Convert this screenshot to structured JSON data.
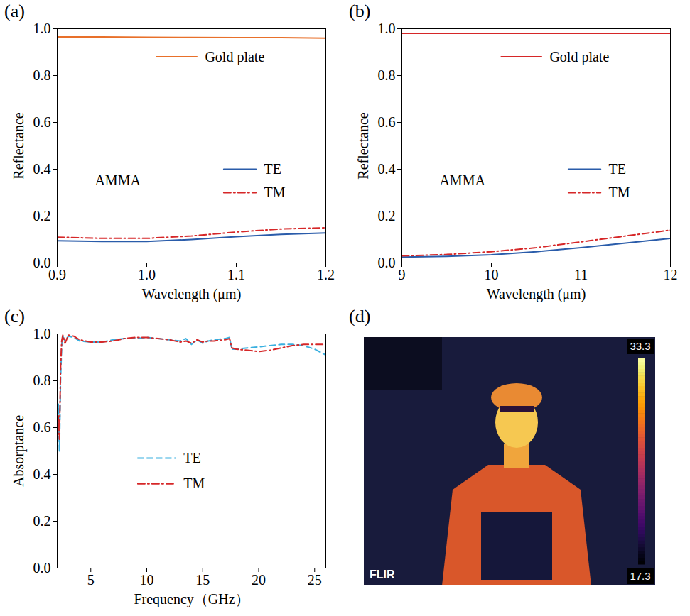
{
  "chart_data": [
    {
      "panel": "(a)",
      "type": "line",
      "xlabel": "Wavelength (μm)",
      "ylabel": "Reflectance",
      "annotations": [
        {
          "text": "AMMA"
        }
      ],
      "x": [
        0.9,
        0.95,
        1.0,
        1.05,
        1.1,
        1.15,
        1.2
      ],
      "series": [
        {
          "name": "Gold plate",
          "color": "#e8702a",
          "line_style": "solid",
          "values": [
            0.965,
            0.965,
            0.964,
            0.963,
            0.962,
            0.962,
            0.96
          ]
        },
        {
          "name": "TE",
          "color": "#2a5caa",
          "line_style": "solid",
          "values": [
            0.095,
            0.092,
            0.092,
            0.1,
            0.112,
            0.122,
            0.128
          ]
        },
        {
          "name": "TM",
          "color": "#d62728",
          "line_style": "dashdot",
          "values": [
            0.11,
            0.105,
            0.105,
            0.115,
            0.132,
            0.145,
            0.15
          ]
        }
      ],
      "xlim": [
        0.9,
        1.2
      ],
      "xticks": [
        0.9,
        {
          "value": 1,
          "label": "1.0"
        },
        1.1,
        1.2
      ],
      "ylim": [
        0,
        1
      ],
      "yticks": [
        {
          "value": 0,
          "label": "0.0"
        },
        0.2,
        0.4,
        0.6,
        0.8,
        {
          "value": 1,
          "label": "1.0"
        }
      ],
      "legend": "right"
    },
    {
      "panel": "(b)",
      "type": "line",
      "xlabel": "Wavelength (μm)",
      "ylabel": "Reflectance",
      "annotations": [
        {
          "text": "AMMA"
        }
      ],
      "x": [
        9,
        9.5,
        10,
        10.5,
        11,
        11.5,
        12
      ],
      "series": [
        {
          "name": "Gold plate",
          "color": "#d62728",
          "line_style": "solid",
          "values": [
            0.98,
            0.98,
            0.98,
            0.98,
            0.98,
            0.98,
            0.98
          ]
        },
        {
          "name": "TE",
          "color": "#2a5caa",
          "line_style": "solid",
          "values": [
            0.025,
            0.028,
            0.035,
            0.048,
            0.065,
            0.085,
            0.105
          ]
        },
        {
          "name": "TM",
          "color": "#d62728",
          "line_style": "dashdot",
          "values": [
            0.03,
            0.036,
            0.048,
            0.065,
            0.09,
            0.115,
            0.14
          ]
        }
      ],
      "xlim": [
        9,
        12
      ],
      "xticks": [
        9,
        10,
        11,
        12
      ],
      "ylim": [
        0,
        1
      ],
      "yticks": [
        {
          "value": 0,
          "label": "0.0"
        },
        0.2,
        0.4,
        0.6,
        0.8,
        {
          "value": 1,
          "label": "1.0"
        }
      ],
      "legend": "right"
    },
    {
      "panel": "(c)",
      "type": "line",
      "xlabel": "Frequency（GHz）",
      "ylabel": "Absorptance",
      "x": [
        2,
        2.1,
        2.2,
        2.3,
        2.4,
        2.5,
        2.7,
        3,
        3.5,
        4,
        5,
        6,
        7,
        8,
        9,
        10,
        11,
        12,
        13,
        13.5,
        14,
        14.5,
        15,
        15.5,
        16,
        17,
        17.4,
        17.6,
        18,
        19,
        20,
        21,
        22,
        23,
        24,
        25,
        26
      ],
      "series": [
        {
          "name": "TE",
          "color": "#3ab0e0",
          "line_style": "dashed",
          "values": [
            0.6,
            0.7,
            0.5,
            0.8,
            0.95,
            0.99,
            0.97,
            0.99,
            0.985,
            0.97,
            0.965,
            0.965,
            0.975,
            0.98,
            0.98,
            0.985,
            0.98,
            0.975,
            0.97,
            0.98,
            0.955,
            0.975,
            0.96,
            0.97,
            0.975,
            0.98,
            0.985,
            0.935,
            0.935,
            0.94,
            0.945,
            0.95,
            0.955,
            0.955,
            0.95,
            0.935,
            0.91
          ]
        },
        {
          "name": "TM",
          "color": "#d62728",
          "line_style": "dashdot",
          "values": [
            0.5,
            0.65,
            0.55,
            0.85,
            0.97,
            0.995,
            0.96,
            0.995,
            0.99,
            0.975,
            0.965,
            0.965,
            0.97,
            0.98,
            0.985,
            0.985,
            0.98,
            0.975,
            0.965,
            0.97,
            0.96,
            0.975,
            0.965,
            0.97,
            0.97,
            0.975,
            0.98,
            0.94,
            0.935,
            0.93,
            0.925,
            0.93,
            0.94,
            0.95,
            0.955,
            0.955,
            0.955
          ]
        }
      ],
      "xlim": [
        2,
        26
      ],
      "xticks": [
        5,
        10,
        15,
        20,
        25
      ],
      "ylim": [
        0,
        1
      ],
      "yticks": [
        {
          "value": 0,
          "label": "0.0"
        },
        0.2,
        0.4,
        0.6,
        0.8,
        {
          "value": 1,
          "label": "1.0"
        }
      ],
      "legend": "center"
    },
    {
      "panel": "(d)",
      "type": "image",
      "colorbar_range": [
        17.3,
        33.3
      ],
      "colorbar_ticks": [
        17.3,
        33.3
      ],
      "watermark": "FLIR"
    }
  ]
}
